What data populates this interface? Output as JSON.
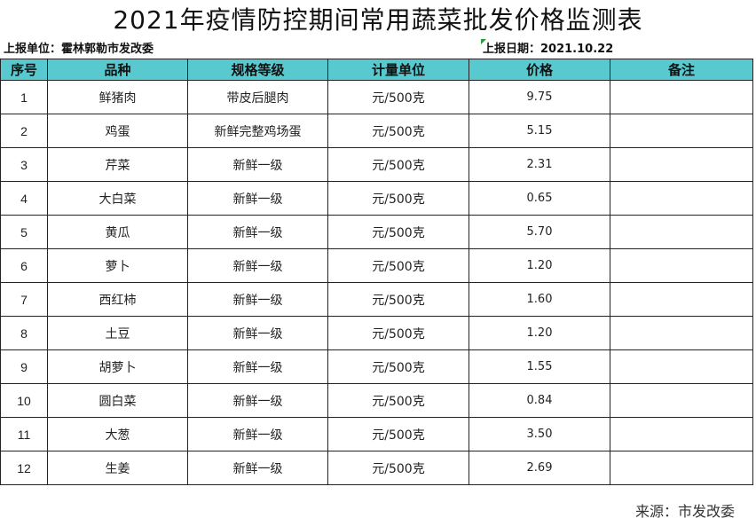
{
  "document": {
    "title": "2021年疫情防控期间常用蔬菜批发价格监测表",
    "report_unit": "上报单位：霍林郭勒市发改委",
    "report_date": "上报日期：2021.10.22",
    "source": "来源：市发改委"
  },
  "table": {
    "headers": {
      "no": "序号",
      "variety": "品种",
      "spec": "规格等级",
      "unit": "计量单位",
      "price": "价格",
      "remark": "备注"
    },
    "rows": [
      {
        "no": "1",
        "variety": "鲜猪肉",
        "spec": "带皮后腿肉",
        "unit": "元/500克",
        "price": "9.75",
        "remark": ""
      },
      {
        "no": "2",
        "variety": "鸡蛋",
        "spec": "新鲜完整鸡场蛋",
        "unit": "元/500克",
        "price": "5.15",
        "remark": ""
      },
      {
        "no": "3",
        "variety": "芹菜",
        "spec": "新鲜一级",
        "unit": "元/500克",
        "price": "2.31",
        "remark": ""
      },
      {
        "no": "4",
        "variety": "大白菜",
        "spec": "新鲜一级",
        "unit": "元/500克",
        "price": "0.65",
        "remark": ""
      },
      {
        "no": "5",
        "variety": "黄瓜",
        "spec": "新鲜一级",
        "unit": "元/500克",
        "price": "5.70",
        "remark": ""
      },
      {
        "no": "6",
        "variety": "萝卜",
        "spec": "新鲜一级",
        "unit": "元/500克",
        "price": "1.20",
        "remark": ""
      },
      {
        "no": "7",
        "variety": "西红柿",
        "spec": "新鲜一级",
        "unit": "元/500克",
        "price": "1.60",
        "remark": ""
      },
      {
        "no": "8",
        "variety": "土豆",
        "spec": "新鲜一级",
        "unit": "元/500克",
        "price": "1.20",
        "remark": ""
      },
      {
        "no": "9",
        "variety": "胡萝卜",
        "spec": "新鲜一级",
        "unit": "元/500克",
        "price": "1.55",
        "remark": ""
      },
      {
        "no": "10",
        "variety": "圆白菜",
        "spec": "新鲜一级",
        "unit": "元/500克",
        "price": "0.84",
        "remark": ""
      },
      {
        "no": "11",
        "variety": "大葱",
        "spec": "新鲜一级",
        "unit": "元/500克",
        "price": "3.50",
        "remark": ""
      },
      {
        "no": "12",
        "variety": "生姜",
        "spec": "新鲜一级",
        "unit": "元/500克",
        "price": "2.69",
        "remark": ""
      }
    ]
  },
  "colors": {
    "header_background": "#57c9cf",
    "border": "#222222",
    "marker": "#2e9b3c"
  }
}
